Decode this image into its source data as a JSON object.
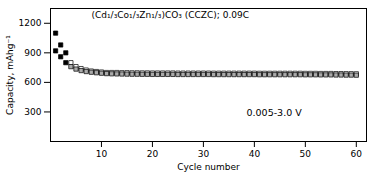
{
  "chart_data": {
    "type": "scatter",
    "title": "(Cd₁/₃Co₁/₃Zn₁/₃)CO₃ (CCZC); 0.09C",
    "annotations": [
      "0.005-3.0 V"
    ],
    "xlabel": "Cycle number",
    "ylabel": "Capacity, mAhg⁻¹",
    "xlim": [
      0,
      62
    ],
    "ylim": [
      0,
      1350
    ],
    "xticks": [
      10,
      20,
      30,
      40,
      50,
      60
    ],
    "yticks": [
      300,
      600,
      900,
      1200
    ],
    "grid": false,
    "series": [
      {
        "color": "#000000",
        "marker": "square",
        "x": [
          1,
          2,
          3
        ],
        "values": [
          1100,
          980,
          900
        ]
      },
      {
        "color": "#ffffff",
        "marker": "square",
        "x": [
          4,
          5,
          6,
          7,
          8,
          9,
          10,
          11,
          12,
          13,
          14,
          15,
          16,
          17,
          18,
          19,
          20,
          21,
          22,
          23,
          24,
          25,
          26,
          27,
          28,
          29,
          30,
          31,
          32,
          33,
          34,
          35,
          36,
          37,
          38,
          39,
          40,
          41,
          42,
          43,
          44,
          45,
          46,
          47,
          48,
          49,
          50,
          51,
          52,
          53,
          54,
          55,
          56,
          57,
          58,
          59,
          60
        ],
        "values": [
          800,
          760,
          740,
          725,
          715,
          710,
          705,
          700,
          700,
          700,
          698,
          698,
          697,
          697,
          696,
          696,
          695,
          695,
          695,
          695,
          695,
          694,
          694,
          694,
          694,
          694,
          694,
          694,
          693,
          693,
          693,
          693,
          693,
          693,
          693,
          693,
          693,
          692,
          692,
          692,
          692,
          692,
          692,
          692,
          692,
          692,
          691,
          691,
          691,
          690,
          690,
          690,
          689,
          689,
          688,
          688,
          687
        ]
      },
      {
        "color": "#000000",
        "marker": "square",
        "x": [
          1,
          2,
          3
        ],
        "values": [
          920,
          860,
          800
        ]
      },
      {
        "color": "#aaaaaa",
        "marker": "square",
        "x": [
          4,
          5,
          6,
          7,
          8,
          9,
          10,
          11,
          12,
          13,
          14,
          15,
          16,
          17,
          18,
          19,
          20,
          21,
          22,
          23,
          24,
          25,
          26,
          27,
          28,
          29,
          30,
          31,
          32,
          33,
          34,
          35,
          36,
          37,
          38,
          39,
          40,
          41,
          42,
          43,
          44,
          45,
          46,
          47,
          48,
          49,
          50,
          51,
          52,
          53,
          54,
          55,
          56,
          57,
          58,
          59,
          60
        ],
        "values": [
          760,
          735,
          720,
          710,
          703,
          698,
          693,
          689,
          687,
          686,
          685,
          684,
          683,
          683,
          682,
          682,
          681,
          681,
          681,
          681,
          681,
          680,
          680,
          680,
          680,
          680,
          680,
          680,
          679,
          679,
          679,
          679,
          679,
          679,
          679,
          679,
          679,
          678,
          678,
          678,
          678,
          678,
          678,
          678,
          678,
          678,
          677,
          677,
          677,
          676,
          676,
          676,
          675,
          675,
          674,
          674,
          673
        ]
      }
    ]
  }
}
